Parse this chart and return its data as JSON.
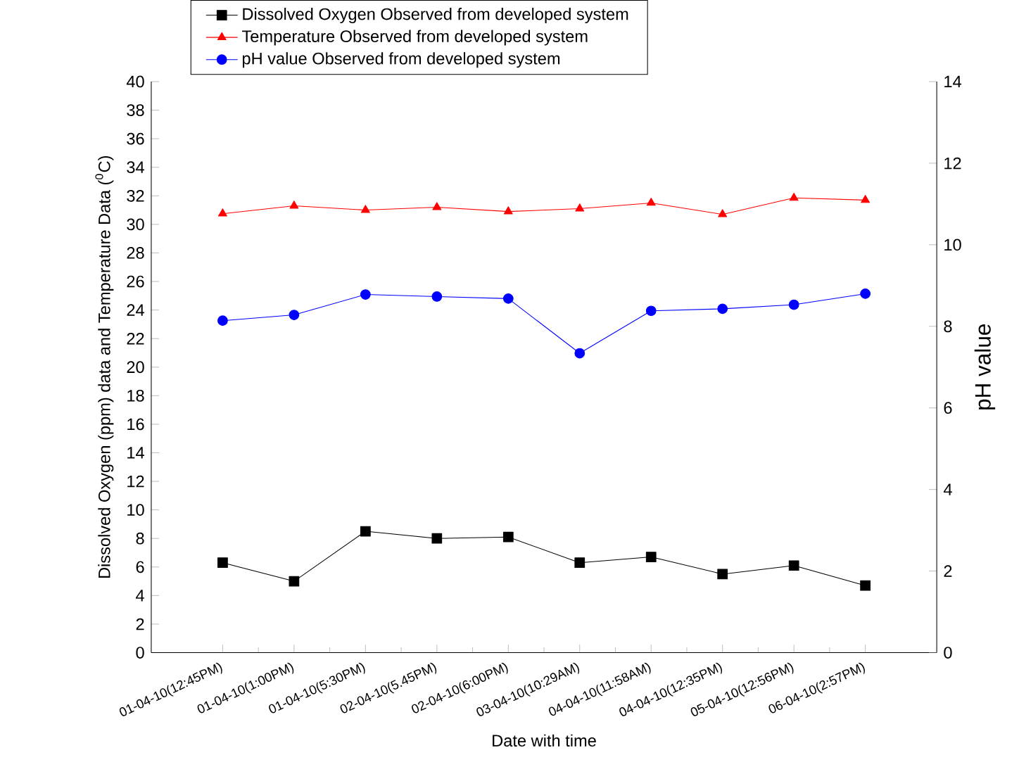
{
  "chart_data": {
    "type": "line",
    "ylabel": "Dissolved Oxygen (ppm) data and Temperature Data ($^{0}$C)",
    "y2label": "pH value",
    "xlabel": "Date with time",
    "categories": [
      "01-04-10(12:45PM)",
      "01-04-10(1:00PM)",
      "01-04-10(5:30PM)",
      "02-04-10(5.45PM)",
      "02-04-10(6:00PM)",
      "03-04-10(10:29AM)",
      "04-04-10(11:58AM)",
      "04-04-10(12:35PM)",
      "05-04-10(12:56PM)",
      "06-04-10(2:57PM)"
    ],
    "ylim": [
      0,
      40
    ],
    "yticks": [
      0,
      2,
      4,
      6,
      8,
      10,
      12,
      14,
      16,
      18,
      20,
      22,
      24,
      26,
      28,
      30,
      32,
      34,
      36,
      38,
      40
    ],
    "y2lim": [
      0,
      14
    ],
    "y2ticks": [
      0,
      2,
      4,
      6,
      8,
      10,
      12,
      14
    ],
    "legend": "top",
    "grid": false,
    "line_style": "solid",
    "series": [
      {
        "name": "Dissolved Oxygen Observed from developed system",
        "color": "#000000",
        "marker": "square",
        "values": [
          6.3,
          5.0,
          8.5,
          8.0,
          8.1,
          6.3,
          6.7,
          5.5,
          6.1,
          4.7
        ]
      },
      {
        "name": "Temperature Observed from developed system",
        "color": "#ff0000",
        "marker": "triangle",
        "values": [
          30.75,
          31.3,
          31.0,
          31.2,
          30.9,
          31.1,
          31.5,
          30.7,
          31.85,
          31.7
        ]
      },
      {
        "name": "pH value Observed from developed system",
        "color": "#0000ff",
        "marker": "circle",
        "axis": "y2",
        "values": [
          8.14,
          8.28,
          8.78,
          8.73,
          8.68,
          7.34,
          8.38,
          8.43,
          8.53,
          8.8
        ]
      }
    ]
  }
}
